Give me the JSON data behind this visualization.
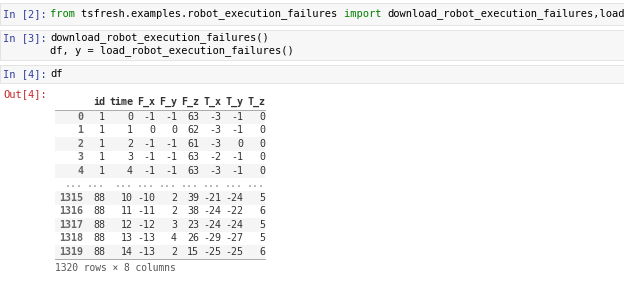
{
  "bg_color": "#ffffff",
  "cell_bg": "#f7f7f7",
  "cell_border": "#e0e0e0",
  "in_label_color": "#303f9f",
  "out_label_color": "#c62828",
  "keyword_color": "#008000",
  "code_color": "#000000",
  "table_index_color": "#666666",
  "table_data_color": "#333333",
  "table_header_color": "#333333",
  "row_alt_color": "#f5f5f5",
  "row_norm_color": "#ffffff",
  "footer_color": "#555555",
  "in2_from": "from ",
  "in2_module": "tsfresh.examples.robot_execution_failures ",
  "in2_import": "import ",
  "in2_rest": "download_robot_execution_failures,load_robot_execution_failures",
  "in3_line1": "download_robot_execution_failures()",
  "in3_line2": "df, y = load_robot_execution_failures()",
  "in4_code": "df",
  "table_header": [
    "",
    "id",
    "time",
    "F_x",
    "F_y",
    "F_z",
    "T_x",
    "T_y",
    "T_z"
  ],
  "table_rows_top": [
    [
      "0",
      "1",
      "0",
      "-1",
      "-1",
      "63",
      "-3",
      "-1",
      "0"
    ],
    [
      "1",
      "1",
      "1",
      "0",
      "0",
      "62",
      "-3",
      "-1",
      "0"
    ],
    [
      "2",
      "1",
      "2",
      "-1",
      "-1",
      "61",
      "-3",
      "0",
      "0"
    ],
    [
      "3",
      "1",
      "3",
      "-1",
      "-1",
      "63",
      "-2",
      "-1",
      "0"
    ],
    [
      "4",
      "1",
      "4",
      "-1",
      "-1",
      "63",
      "-3",
      "-1",
      "0"
    ]
  ],
  "table_rows_bottom": [
    [
      "1315",
      "88",
      "10",
      "-10",
      "2",
      "39",
      "-21",
      "-24",
      "5"
    ],
    [
      "1316",
      "88",
      "11",
      "-11",
      "2",
      "38",
      "-24",
      "-22",
      "6"
    ],
    [
      "1317",
      "88",
      "12",
      "-12",
      "3",
      "23",
      "-24",
      "-24",
      "5"
    ],
    [
      "1318",
      "88",
      "13",
      "-13",
      "4",
      "26",
      "-29",
      "-27",
      "5"
    ],
    [
      "1319",
      "88",
      "14",
      "-13",
      "2",
      "15",
      "-25",
      "-25",
      "6"
    ]
  ],
  "footer_text": "1320 rows × 8 columns"
}
